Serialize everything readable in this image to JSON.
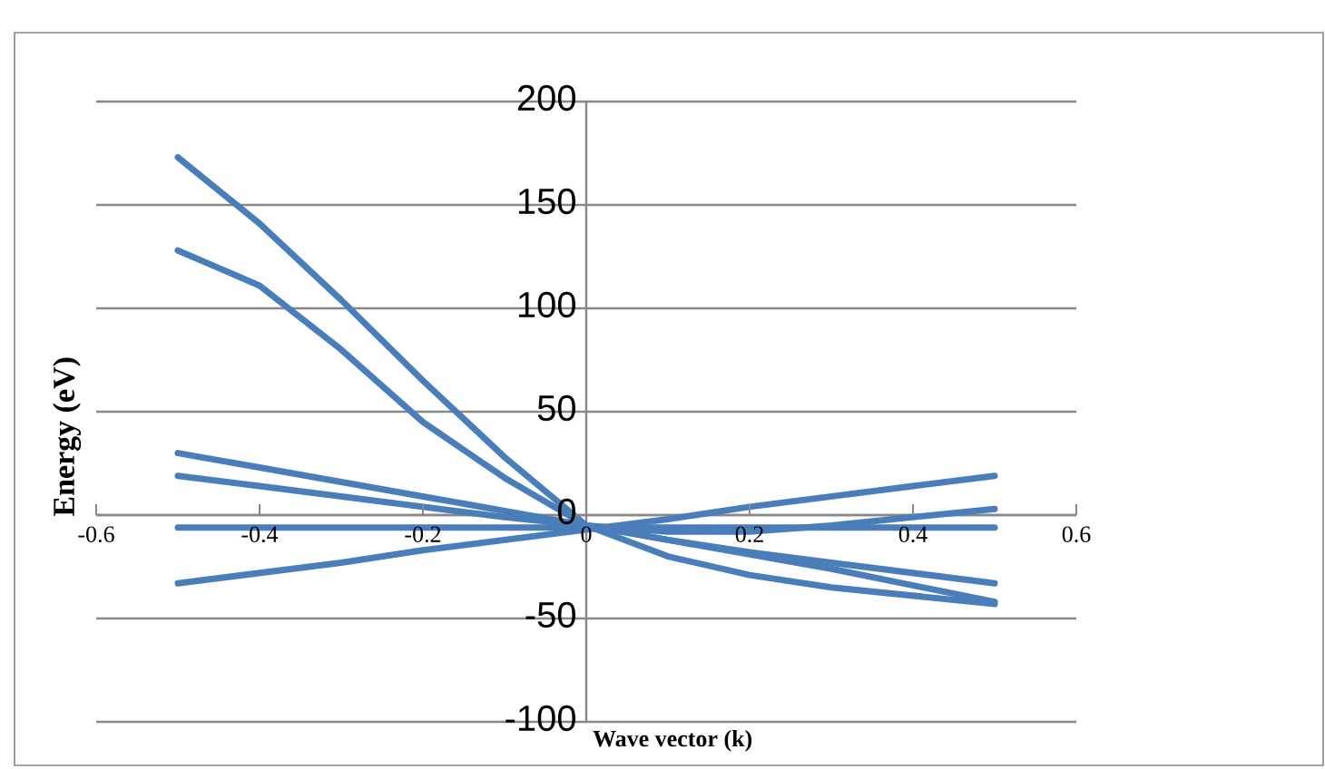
{
  "chart_data": {
    "type": "line",
    "xlabel": "Wave vector (k)",
    "ylabel": "Energy  (eV)",
    "x": [
      -0.5,
      -0.4,
      -0.3,
      -0.2,
      -0.1,
      0,
      0.1,
      0.2,
      0.3,
      0.4,
      0.5
    ],
    "series": [
      {
        "color": "#4a7ebb",
        "values": [
          173,
          141,
          104,
          65,
          28,
          -5,
          -20,
          -29,
          -35,
          -39,
          -43
        ]
      },
      {
        "color": "#4a7ebb",
        "values": [
          128,
          111,
          80,
          45,
          18,
          -5,
          -12,
          -18,
          -23,
          -28,
          -33
        ]
      },
      {
        "color": "#4a7ebb",
        "values": [
          30,
          23,
          16,
          9,
          2,
          -5,
          -12,
          -19,
          -26,
          -34,
          -42
        ]
      },
      {
        "color": "#4a7ebb",
        "values": [
          19,
          14,
          9,
          4,
          -1,
          -5,
          -8,
          -8,
          -5,
          -1,
          3
        ]
      },
      {
        "color": "#4a7ebb",
        "values": [
          -6,
          -6,
          -6,
          -6,
          -6,
          -6,
          -6,
          -6,
          -6,
          -6,
          -6
        ]
      },
      {
        "color": "#4a7ebb",
        "values": [
          -33,
          -28,
          -23,
          -17,
          -12,
          -7,
          -2,
          4,
          9,
          14,
          19
        ]
      }
    ],
    "xlim": [
      -0.6,
      0.6
    ],
    "ylim": [
      -100,
      200
    ],
    "xticks": [
      -0.6,
      -0.4,
      -0.2,
      0,
      0.2,
      0.4,
      0.6
    ],
    "yticks": [
      -100,
      -50,
      0,
      50,
      100,
      150,
      200
    ],
    "grid": "y",
    "marker": "none",
    "line_style": "solid"
  }
}
